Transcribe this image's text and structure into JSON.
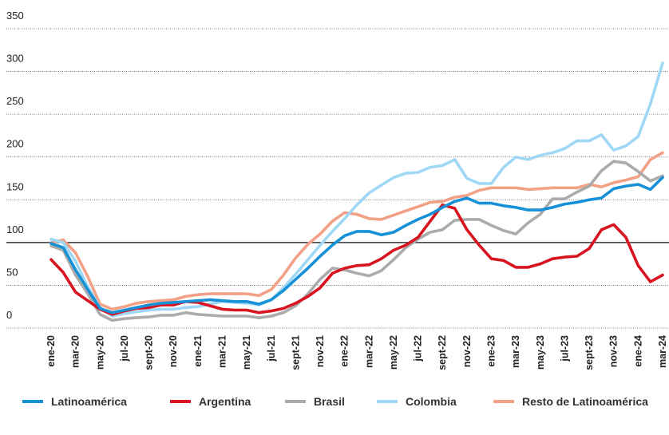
{
  "chart_data": {
    "type": "line",
    "categories": [
      "ene-20",
      null,
      "mar-20",
      null,
      "may-20",
      null,
      "jul-20",
      null,
      "sept-20",
      null,
      "nov-20",
      null,
      "ene-21",
      null,
      "mar-21",
      null,
      "may-21",
      null,
      "jul-21",
      null,
      "sept-21",
      null,
      "nov-21",
      null,
      "ene-22",
      null,
      "mar-22",
      null,
      "may-22",
      null,
      "jul-22",
      null,
      "sept-22",
      null,
      "nov-22",
      null,
      "ene-23",
      null,
      "mar-23",
      null,
      "may-23",
      null,
      "jul-23",
      null,
      "sept-23",
      null,
      "nov-23",
      null,
      "ene-24",
      null,
      "mar-24"
    ],
    "series": [
      {
        "name": "Resto de Latinoamérica",
        "color": "#f2a086",
        "values": [
          100,
          103,
          88,
          60,
          28,
          22,
          25,
          29,
          31,
          32,
          33,
          37,
          39,
          40,
          40,
          40,
          40,
          38,
          45,
          62,
          82,
          98,
          110,
          125,
          135,
          133,
          128,
          127,
          132,
          137,
          142,
          147,
          148,
          153,
          155,
          161,
          164,
          164,
          164,
          162,
          163,
          164,
          164,
          164,
          168,
          165,
          170,
          173,
          177,
          197,
          205
        ]
      },
      {
        "name": "Colombia",
        "color": "#9fd8f6",
        "values": [
          104,
          100,
          78,
          48,
          24,
          14,
          17,
          19,
          21,
          22,
          22,
          24,
          25,
          28,
          31,
          30,
          29,
          27,
          33,
          47,
          63,
          80,
          97,
          113,
          128,
          144,
          158,
          167,
          176,
          181,
          182,
          188,
          190,
          197,
          175,
          169,
          169,
          188,
          200,
          197,
          202,
          205,
          210,
          219,
          219,
          226,
          208,
          213,
          224,
          262,
          310
        ]
      },
      {
        "name": "Brasil",
        "color": "#ababab",
        "values": [
          96,
          91,
          62,
          40,
          16,
          9,
          11,
          12,
          13,
          15,
          15,
          18,
          16,
          15,
          14,
          14,
          14,
          12,
          14,
          18,
          26,
          40,
          57,
          70,
          68,
          64,
          61,
          67,
          80,
          94,
          104,
          112,
          115,
          126,
          127,
          127,
          120,
          114,
          110,
          123,
          133,
          151,
          151,
          159,
          166,
          184,
          195,
          193,
          183,
          172,
          178
        ]
      },
      {
        "name": "Argentina",
        "color": "#d7141f",
        "values": [
          80,
          65,
          42,
          32,
          22,
          16,
          20,
          23,
          24,
          27,
          27,
          31,
          30,
          26,
          22,
          21,
          21,
          18,
          20,
          23,
          29,
          37,
          47,
          64,
          70,
          73,
          74,
          81,
          91,
          97,
          106,
          125,
          144,
          140,
          115,
          97,
          81,
          79,
          71,
          71,
          75,
          81,
          83,
          84,
          93,
          115,
          121,
          106,
          73,
          54,
          62
        ]
      },
      {
        "name": "Latinoamérica",
        "color": "#1690d6",
        "values": [
          99,
          94,
          68,
          45,
          23,
          18,
          21,
          24,
          27,
          29,
          30,
          31,
          32,
          33,
          32,
          31,
          31,
          28,
          33,
          44,
          57,
          70,
          84,
          97,
          108,
          113,
          113,
          109,
          112,
          120,
          127,
          133,
          141,
          148,
          152,
          146,
          146,
          143,
          141,
          138,
          138,
          141,
          145,
          147,
          150,
          152,
          163,
          166,
          168,
          162,
          176
        ]
      }
    ],
    "legend_order": [
      4,
      3,
      2,
      1,
      0
    ],
    "ylim": [
      0,
      350
    ],
    "yticks": [
      0,
      50,
      100,
      150,
      200,
      250,
      300,
      350
    ],
    "grid": true,
    "reference_line": 100
  }
}
